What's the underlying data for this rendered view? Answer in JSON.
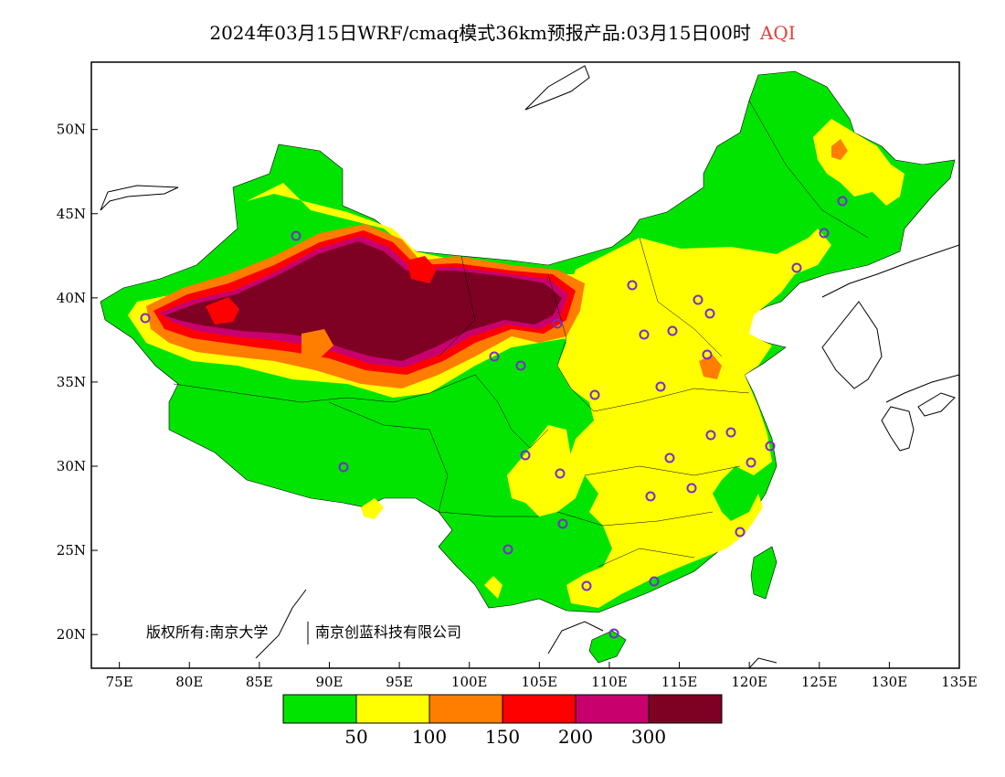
{
  "title": {
    "main": "2024年03月15日WRF/cmaq模式36km预报产品:03月15日00时",
    "variable": "AQI"
  },
  "map": {
    "lon_range": [
      73,
      135
    ],
    "lat_range": [
      18,
      54
    ],
    "lat_ticks": [
      "50N",
      "45N",
      "40N",
      "35N",
      "30N",
      "25N",
      "20N"
    ],
    "lat_tick_values": [
      50,
      45,
      40,
      35,
      30,
      25,
      20
    ],
    "lon_ticks": [
      "75E",
      "80E",
      "85E",
      "90E",
      "95E",
      "100E",
      "105E",
      "110E",
      "115E",
      "120E",
      "125E",
      "130E",
      "135E"
    ],
    "lon_tick_values": [
      75,
      80,
      85,
      90,
      95,
      100,
      105,
      110,
      115,
      120,
      125,
      130,
      135
    ],
    "copyright": "版权所有:南京大学",
    "copyright2": "南京创蓝科技有限公司",
    "station_marker_color": "#7a2ccc"
  },
  "legend": {
    "colors": [
      "#00e400",
      "#ffff00",
      "#ff7e00",
      "#ff0000",
      "#c8006e",
      "#7e0023"
    ],
    "labels": [
      "50",
      "100",
      "150",
      "200",
      "300"
    ]
  }
}
